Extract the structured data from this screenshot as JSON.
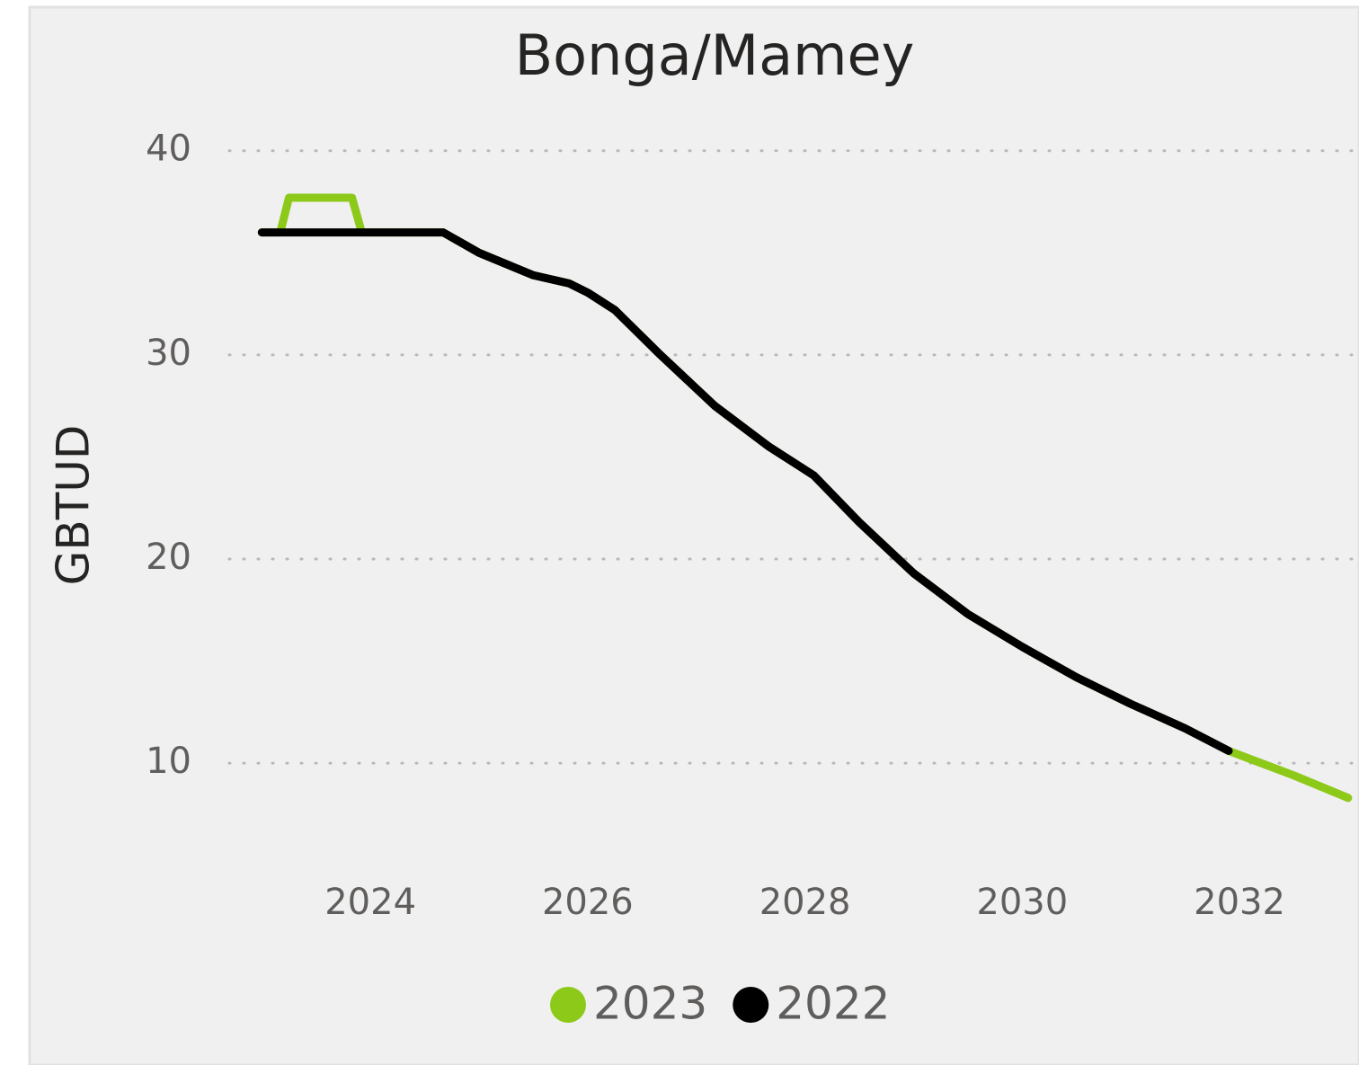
{
  "chart_data": {
    "type": "line",
    "title": "Bonga/Mamey",
    "y_label": "GBTUD",
    "xlim": [
      2022.7,
      2033.1
    ],
    "xticks": [
      2024,
      2026,
      2028,
      2030,
      2032
    ],
    "ylim": [
      6,
      41
    ],
    "yticks": [
      10,
      20,
      30,
      40
    ],
    "grid": true,
    "legend": "bottom",
    "series": [
      {
        "name": "2023",
        "color": "#8dc919",
        "x": [
          2023.0,
          2023.17,
          2023.25,
          2023.83,
          2023.92,
          2024.67,
          2025.0,
          2025.5,
          2025.83,
          2026.0,
          2026.25,
          2026.67,
          2027.17,
          2027.67,
          2028.08,
          2028.5,
          2029.0,
          2029.5,
          2030.0,
          2030.5,
          2031.0,
          2031.5,
          2031.9,
          2032.5,
          2033.0
        ],
        "values": [
          36.0,
          36.0,
          37.7,
          37.7,
          36.0,
          36.0,
          35.0,
          33.9,
          33.5,
          33.05,
          32.2,
          30.0,
          27.5,
          25.5,
          24.1,
          21.8,
          19.3,
          17.3,
          15.7,
          14.2,
          12.9,
          11.7,
          10.6,
          9.4,
          8.3
        ]
      },
      {
        "name": "2022",
        "color": "#000000",
        "x": [
          2023.0,
          2024.67,
          2025.0,
          2025.5,
          2025.83,
          2026.0,
          2026.25,
          2026.67,
          2027.17,
          2027.67,
          2028.08,
          2028.5,
          2029.0,
          2029.5,
          2030.0,
          2030.5,
          2031.0,
          2031.5,
          2031.9
        ],
        "values": [
          36.0,
          36.0,
          35.0,
          33.9,
          33.5,
          33.05,
          32.2,
          30.0,
          27.5,
          25.5,
          24.1,
          21.8,
          19.3,
          17.3,
          15.7,
          14.2,
          12.9,
          11.7,
          10.6
        ]
      }
    ]
  }
}
